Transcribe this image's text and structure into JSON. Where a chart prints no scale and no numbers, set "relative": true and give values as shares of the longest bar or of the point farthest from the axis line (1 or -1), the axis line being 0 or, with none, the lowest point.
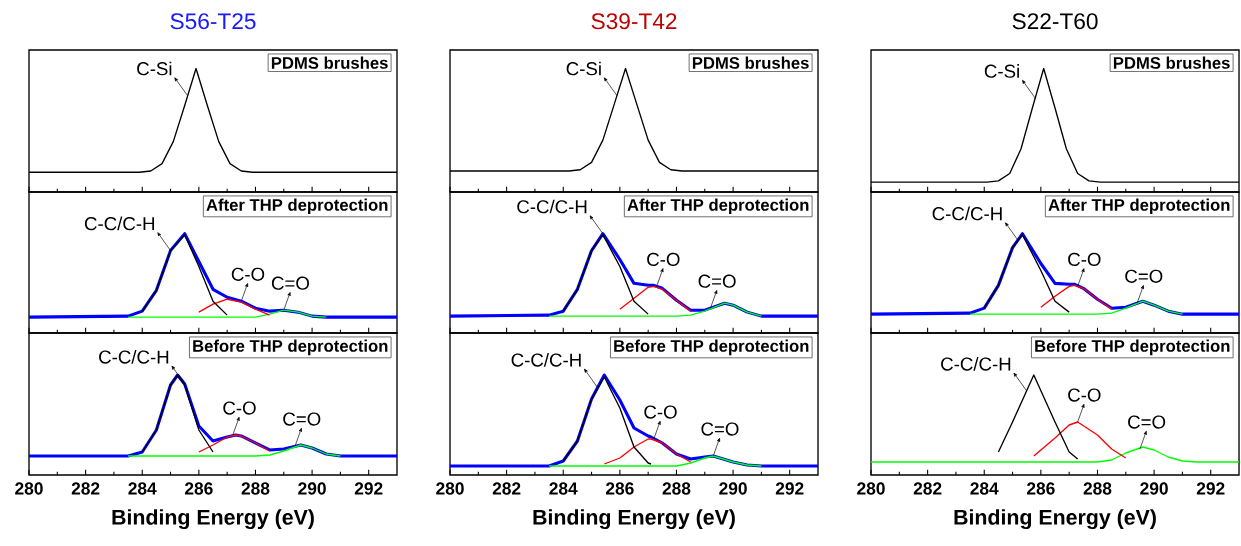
{
  "chart_data": [
    {
      "type": "line",
      "relative": true,
      "title": "S56-T25",
      "tick_labels": false,
      "xlim": [
        280,
        293
      ],
      "xticks": [
        280,
        282,
        284,
        286,
        288,
        290,
        292
      ],
      "x": [
        280,
        283.9,
        284.3,
        284.7,
        285.1,
        285.5,
        285.9,
        286.3,
        286.7,
        287.1,
        287.5,
        287.9,
        293
      ],
      "series": [
        {
          "color": "#000000",
          "values": [
            0.16,
            0.16,
            0.17,
            0.23,
            0.41,
            0.7,
            1,
            0.7,
            0.41,
            0.23,
            0.17,
            0.16,
            0.16
          ]
        }
      ],
      "annotations": [
        "PDMS brushes",
        {
          "text": "C-Si",
          "x": 285.6,
          "y": 0.78
        }
      ]
    },
    {
      "type": "line",
      "relative": true,
      "title": "S39-T42",
      "tick_labels": false,
      "xlim": [
        280,
        293
      ],
      "xticks": [
        280,
        282,
        284,
        286,
        288,
        290,
        292
      ],
      "x": [
        280,
        284.2,
        284.6,
        285,
        285.4,
        285.8,
        286.2,
        286.6,
        287,
        287.4,
        287.8,
        288.2,
        293
      ],
      "series": [
        {
          "color": "#000000",
          "values": [
            0.17,
            0.17,
            0.18,
            0.24,
            0.42,
            0.71,
            1,
            0.71,
            0.42,
            0.24,
            0.18,
            0.17,
            0.17
          ]
        }
      ],
      "annotations": [
        "PDMS brushes",
        {
          "text": "C-Si",
          "x": 285.9,
          "y": 0.78
        }
      ]
    },
    {
      "type": "line",
      "relative": true,
      "title": "S22-T60",
      "tick_labels": false,
      "xlim": [
        280,
        293
      ],
      "xticks": [
        280,
        282,
        284,
        286,
        288,
        290,
        292
      ],
      "x": [
        280,
        284.1,
        284.5,
        284.9,
        285.3,
        285.7,
        286.1,
        286.5,
        286.9,
        287.3,
        287.7,
        288.1,
        293
      ],
      "series": [
        {
          "color": "#000000",
          "values": [
            0.08,
            0.08,
            0.09,
            0.15,
            0.35,
            0.68,
            1,
            0.68,
            0.35,
            0.15,
            0.09,
            0.08,
            0.08
          ]
        }
      ],
      "annotations": [
        "PDMS brushes",
        {
          "text": "C-Si",
          "x": 285.8,
          "y": 0.76
        }
      ]
    },
    {
      "type": "line",
      "relative": true,
      "tick_labels": false,
      "xlim": [
        280,
        293
      ],
      "xticks": [
        280,
        282,
        284,
        286,
        288,
        290,
        292
      ],
      "x": [
        280,
        283.5,
        284,
        284.5,
        285,
        285.5,
        286,
        286.5,
        287,
        287.5,
        288,
        288.5,
        289,
        289.5,
        290,
        290.5,
        291,
        293
      ],
      "series": [
        {
          "color": "#0000ff",
          "values": [
            0.16,
            0.17,
            0.22,
            0.43,
            0.83,
            1,
            0.72,
            0.44,
            0.36,
            0.32,
            0.25,
            0.22,
            0.23,
            0.21,
            0.17,
            0.16,
            0.16,
            0.16
          ]
        },
        {
          "color": "#00ff00",
          "values": [
            null,
            0.16,
            0.16,
            0.16,
            0.16,
            0.16,
            0.16,
            0.16,
            0.16,
            0.16,
            0.16,
            0.19,
            0.23,
            0.21,
            0.17,
            0.16,
            null,
            null
          ]
        },
        {
          "color": "#ff0000",
          "values": [
            null,
            null,
            null,
            null,
            null,
            null,
            0.21,
            0.29,
            0.34,
            0.31,
            0.24,
            0.18,
            null,
            null,
            null,
            null,
            null,
            null
          ]
        },
        {
          "color": "#000000",
          "values": [
            null,
            null,
            0.22,
            0.43,
            0.83,
            0.99,
            0.67,
            0.32,
            0.18,
            null,
            null,
            null,
            null,
            null,
            null,
            null,
            null,
            null
          ]
        }
      ],
      "annotations": [
        "After THP deprotection",
        {
          "text": "C-C/C-H",
          "x": 285.0,
          "y": 0.83
        },
        {
          "text": "C-O",
          "x": 287.5,
          "y": 0.32
        },
        {
          "text": "C=O",
          "x": 289.0,
          "y": 0.23
        }
      ]
    },
    {
      "type": "line",
      "relative": true,
      "tick_labels": false,
      "xlim": [
        280,
        293
      ],
      "xticks": [
        280,
        282,
        284,
        286,
        288,
        290,
        292
      ],
      "x": [
        280,
        283.5,
        284,
        284.5,
        285,
        285.4,
        286,
        286.5,
        287,
        287.2,
        287.5,
        288,
        288.5,
        289,
        289.7,
        290,
        290.5,
        291,
        293
      ],
      "series": [
        {
          "color": "#0000ff",
          "values": [
            0.17,
            0.18,
            0.22,
            0.44,
            0.83,
            1,
            0.74,
            0.5,
            0.48,
            0.48,
            0.45,
            0.33,
            0.23,
            0.23,
            0.3,
            0.28,
            0.21,
            0.17,
            0.17
          ]
        },
        {
          "color": "#00ff00",
          "values": [
            null,
            0.17,
            0.17,
            0.17,
            0.17,
            0.17,
            0.17,
            0.17,
            0.17,
            0.17,
            0.17,
            0.17,
            0.18,
            0.22,
            0.3,
            0.28,
            0.21,
            0.17,
            null
          ]
        },
        {
          "color": "#ff0000",
          "values": [
            null,
            null,
            null,
            null,
            null,
            null,
            0.24,
            0.35,
            0.46,
            0.47,
            0.44,
            0.33,
            0.22,
            null,
            null,
            null,
            null,
            null,
            null
          ]
        },
        {
          "color": "#000000",
          "values": [
            null,
            null,
            0.22,
            0.44,
            0.83,
            0.99,
            0.67,
            0.32,
            0.19,
            null,
            null,
            null,
            null,
            null,
            null,
            null,
            null,
            null,
            null
          ]
        }
      ],
      "annotations": [
        "After THP deprotection",
        {
          "text": "C-C/C-H",
          "x": 285.4,
          "y": 1.0
        },
        {
          "text": "C-O",
          "x": 287.3,
          "y": 0.47
        },
        {
          "text": "C=O",
          "x": 289.2,
          "y": 0.25
        }
      ]
    },
    {
      "type": "line",
      "relative": true,
      "tick_labels": false,
      "xlim": [
        280,
        293
      ],
      "xticks": [
        280,
        282,
        284,
        286,
        288,
        290,
        292
      ],
      "x": [
        280,
        283.5,
        284,
        284.5,
        285,
        285.35,
        286,
        286.5,
        287,
        287.2,
        287.5,
        288,
        288.5,
        289,
        289.6,
        290,
        290.5,
        291,
        293
      ],
      "series": [
        {
          "color": "#0000ff",
          "values": [
            0.19,
            0.2,
            0.25,
            0.48,
            0.86,
            1,
            0.7,
            0.5,
            0.49,
            0.49,
            0.45,
            0.34,
            0.25,
            0.26,
            0.32,
            0.28,
            0.22,
            0.19,
            0.19
          ]
        },
        {
          "color": "#00ff00",
          "values": [
            null,
            0.19,
            0.19,
            0.19,
            0.19,
            0.19,
            0.19,
            0.19,
            0.19,
            0.19,
            0.19,
            0.19,
            0.2,
            0.25,
            0.32,
            0.28,
            0.22,
            0.19,
            null
          ]
        },
        {
          "color": "#ff0000",
          "values": [
            null,
            null,
            null,
            null,
            null,
            null,
            0.26,
            0.37,
            0.47,
            0.48,
            0.45,
            0.34,
            0.24,
            null,
            null,
            null,
            null,
            null,
            null
          ]
        },
        {
          "color": "#000000",
          "values": [
            null,
            null,
            0.25,
            0.48,
            0.86,
            0.99,
            0.63,
            0.32,
            0.21,
            null,
            null,
            null,
            null,
            null,
            null,
            null,
            null,
            null,
            null
          ]
        }
      ],
      "annotations": [
        "After THP deprotection",
        {
          "text": "C-C/C-H",
          "x": 285.2,
          "y": 0.93
        },
        {
          "text": "C-O",
          "x": 287.3,
          "y": 0.47
        },
        {
          "text": "C=O",
          "x": 289.4,
          "y": 0.3
        }
      ]
    },
    {
      "type": "line",
      "relative": true,
      "tick_labels": "x",
      "xlabel": "Binding Energy (eV)",
      "xlim": [
        280,
        293
      ],
      "xticks": [
        280,
        282,
        284,
        286,
        288,
        290,
        292
      ],
      "x": [
        280,
        283.5,
        284,
        284.5,
        285,
        285.25,
        285.5,
        286,
        286.5,
        287,
        287.3,
        287.5,
        288,
        288.5,
        289,
        289.6,
        290,
        290.5,
        291,
        293
      ],
      "series": [
        {
          "color": "#0000ff",
          "values": [
            0.19,
            0.19,
            0.23,
            0.45,
            0.9,
            1,
            0.91,
            0.49,
            0.34,
            0.38,
            0.4,
            0.39,
            0.32,
            0.25,
            0.26,
            0.3,
            0.27,
            0.21,
            0.19,
            0.19
          ]
        },
        {
          "color": "#00ff00",
          "values": [
            null,
            0.19,
            0.19,
            0.19,
            0.19,
            0.19,
            0.19,
            0.19,
            0.19,
            0.19,
            0.19,
            0.19,
            0.19,
            0.2,
            0.24,
            0.3,
            0.27,
            0.21,
            0.19,
            null
          ]
        },
        {
          "color": "#ff0000",
          "values": [
            null,
            null,
            null,
            null,
            null,
            null,
            null,
            0.23,
            0.3,
            0.38,
            0.4,
            0.39,
            0.32,
            0.24,
            null,
            null,
            null,
            null,
            null,
            null
          ]
        },
        {
          "color": "#000000",
          "values": [
            null,
            null,
            0.23,
            0.45,
            0.9,
            1,
            0.9,
            0.45,
            0.23,
            null,
            null,
            null,
            null,
            null,
            null,
            null,
            null,
            null,
            null,
            null
          ]
        }
      ],
      "annotations": [
        "Before THP deprotection",
        {
          "text": "C-C/C-H",
          "x": 285.5,
          "y": 0.91
        },
        {
          "text": "C-O",
          "x": 287.2,
          "y": 0.4
        },
        {
          "text": "C=O",
          "x": 289.4,
          "y": 0.29
        }
      ]
    },
    {
      "type": "line",
      "relative": true,
      "tick_labels": "x",
      "xlabel": "Binding Energy (eV)",
      "xlim": [
        280,
        293
      ],
      "xticks": [
        280,
        282,
        284,
        286,
        288,
        290,
        292
      ],
      "x": [
        280,
        283.5,
        284,
        284.5,
        285,
        285.45,
        286,
        286.5,
        287,
        287.1,
        287.5,
        288,
        288.5,
        289,
        289.3,
        290,
        290.5,
        291,
        293
      ],
      "series": [
        {
          "color": "#0000ff",
          "values": [
            0.09,
            0.09,
            0.14,
            0.34,
            0.76,
            1,
            0.75,
            0.47,
            0.39,
            0.38,
            0.32,
            0.21,
            0.16,
            0.18,
            0.19,
            0.13,
            0.1,
            0.09,
            0.09
          ]
        },
        {
          "color": "#00ff00",
          "values": [
            null,
            0.09,
            0.09,
            0.09,
            0.09,
            0.09,
            0.09,
            0.09,
            0.09,
            0.09,
            0.09,
            0.09,
            0.12,
            0.17,
            0.19,
            0.13,
            0.1,
            0.09,
            null
          ]
        },
        {
          "color": "#ff0000",
          "values": [
            null,
            null,
            null,
            null,
            null,
            0.11,
            0.17,
            0.28,
            0.36,
            0.36,
            0.32,
            0.21,
            0.13,
            null,
            null,
            null,
            null,
            null,
            null
          ]
        },
        {
          "color": "#000000",
          "values": [
            null,
            null,
            0.14,
            0.34,
            0.76,
            0.98,
            0.67,
            0.28,
            0.12,
            0.11,
            null,
            null,
            null,
            null,
            null,
            null,
            null,
            null,
            null
          ]
        }
      ],
      "annotations": [
        "Before THP deprotection",
        {
          "text": "C-C/C-H",
          "x": 285.2,
          "y": 0.88
        },
        {
          "text": "C-O",
          "x": 287.2,
          "y": 0.36
        },
        {
          "text": "C=O",
          "x": 289.3,
          "y": 0.19
        }
      ]
    },
    {
      "type": "line",
      "relative": true,
      "tick_labels": "x",
      "xlabel": "Binding Energy (eV)",
      "xlim": [
        280,
        293
      ],
      "xticks": [
        280,
        282,
        284,
        286,
        288,
        290,
        292
      ],
      "x": [
        280,
        283.7,
        284.5,
        285,
        285.75,
        286.5,
        287,
        287.3,
        288,
        288.5,
        289,
        289.6,
        290,
        290.5,
        291,
        291.5,
        293
      ],
      "series": [
        {
          "color": "#00ff00",
          "values": [
            0.13,
            0.13,
            0.13,
            0.13,
            0.13,
            0.13,
            0.13,
            0.13,
            0.13,
            0.15,
            0.22,
            0.28,
            0.25,
            0.18,
            0.14,
            0.13,
            0.13
          ]
        },
        {
          "color": "#ff0000",
          "values": [
            null,
            null,
            null,
            null,
            0.19,
            0.37,
            0.5,
            0.53,
            0.4,
            0.26,
            0.17,
            null,
            null,
            null,
            null,
            null,
            null
          ]
        },
        {
          "color": "#000000",
          "values": [
            null,
            null,
            0.23,
            0.53,
            1,
            0.53,
            0.23,
            0.16,
            null,
            null,
            null,
            null,
            null,
            null,
            null,
            null,
            null
          ]
        }
      ],
      "annotations": [
        "Before THP deprotection",
        {
          "text": "C-C/C-H",
          "x": 285.5,
          "y": 0.84
        },
        {
          "text": "C-O",
          "x": 287.3,
          "y": 0.53
        },
        {
          "text": "C=O",
          "x": 289.5,
          "y": 0.26
        }
      ]
    }
  ]
}
